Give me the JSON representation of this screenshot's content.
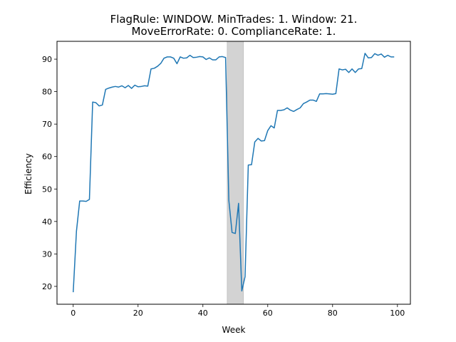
{
  "chart_data": {
    "type": "line",
    "title_lines": [
      "FlagRule: WINDOW. MinTrades: 1. Window: 21.",
      "MoveErrorRate: 0. ComplianceRate: 1."
    ],
    "xlabel": "Week",
    "ylabel": "Efficiency",
    "xlim": [
      -5,
      104
    ],
    "ylim": [
      14.5,
      95.5
    ],
    "xticks": [
      0,
      20,
      40,
      60,
      80,
      100
    ],
    "yticks": [
      20,
      30,
      40,
      50,
      60,
      70,
      80,
      90
    ],
    "grid": false,
    "shaded_region": {
      "x_start": 47.5,
      "x_end": 52.5,
      "color": "#d3d3d3"
    },
    "series": [
      {
        "color": "#1f77b4",
        "x": [
          0,
          1,
          2,
          3,
          4,
          5,
          6,
          7,
          8,
          9,
          10,
          11,
          12,
          13,
          14,
          15,
          16,
          17,
          18,
          19,
          20,
          21,
          22,
          23,
          24,
          25,
          26,
          27,
          28,
          29,
          30,
          31,
          32,
          33,
          34,
          35,
          36,
          37,
          38,
          39,
          40,
          41,
          42,
          43,
          44,
          45,
          46,
          47,
          48,
          49,
          50,
          51,
          52,
          53,
          54,
          55,
          56,
          57,
          58,
          59,
          60,
          61,
          62,
          63,
          64,
          65,
          66,
          67,
          68,
          69,
          70,
          71,
          72,
          73,
          74,
          75,
          76,
          77,
          78,
          79,
          80,
          81,
          82,
          83,
          84,
          85,
          86,
          87,
          88,
          89,
          90,
          91,
          92,
          93,
          94,
          95,
          96,
          97,
          98,
          99
        ],
        "values": [
          18.2,
          37.0,
          46.3,
          46.3,
          46.2,
          46.8,
          76.8,
          76.6,
          75.6,
          75.9,
          80.7,
          81.1,
          81.4,
          81.6,
          81.4,
          81.8,
          81.2,
          81.9,
          81.0,
          82.0,
          81.5,
          81.6,
          81.8,
          81.7,
          87.0,
          87.2,
          87.8,
          88.7,
          90.3,
          90.7,
          90.7,
          90.3,
          88.6,
          90.7,
          90.3,
          90.4,
          91.2,
          90.5,
          90.6,
          90.8,
          90.7,
          89.9,
          90.4,
          89.8,
          89.8,
          90.7,
          90.8,
          90.5,
          46.5,
          36.6,
          36.3,
          45.6,
          18.6,
          23.0,
          57.4,
          57.5,
          64.5,
          65.6,
          64.8,
          64.9,
          68.0,
          69.5,
          68.8,
          74.2,
          74.2,
          74.4,
          75.0,
          74.3,
          73.9,
          74.5,
          75.0,
          76.3,
          76.8,
          77.4,
          77.4,
          77.0,
          79.3,
          79.3,
          79.4,
          79.3,
          79.2,
          79.4,
          87.0,
          86.7,
          86.9,
          85.9,
          87.0,
          85.9,
          87.0,
          87.1,
          91.8,
          90.4,
          90.5,
          91.7,
          91.2,
          91.6,
          90.6,
          91.2,
          90.7,
          90.7
        ]
      }
    ]
  }
}
